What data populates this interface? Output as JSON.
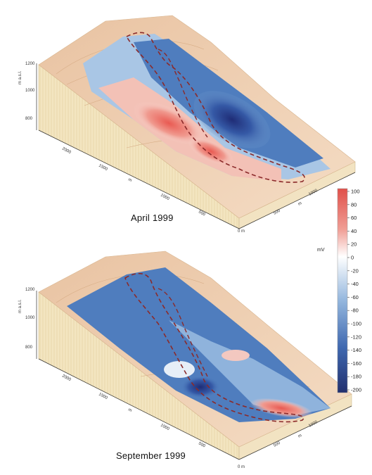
{
  "panels": [
    {
      "caption": "April 1999",
      "z_ticks": [
        "1200",
        "1000",
        "800"
      ],
      "z_axis_label": "m a.s.l.",
      "x_ticks": [
        "2000",
        "1500",
        "1000",
        "500"
      ],
      "x_axis_label": "m",
      "y_ticks": [
        "1000",
        "500",
        "0 m"
      ],
      "y_axis_label": "m"
    },
    {
      "caption": "September 1999",
      "z_ticks": [
        "1200",
        "1000",
        "800"
      ],
      "z_axis_label": "m a.s.l.",
      "x_ticks": [
        "2000",
        "1500",
        "1000",
        "500"
      ],
      "x_axis_label": "m",
      "y_ticks": [
        "1000",
        "500",
        "0 m"
      ],
      "y_axis_label": "m"
    }
  ],
  "colorbar": {
    "unit": "mV",
    "ticks": [
      "100",
      "80",
      "60",
      "40",
      "20",
      "0",
      "-20",
      "-40",
      "-60",
      "-80",
      "-100",
      "-120",
      "-140",
      "-160",
      "-180",
      "-200"
    ],
    "max_color": "#e0504a",
    "zero_color": "#ffffff",
    "min_color": "#22306e"
  }
}
